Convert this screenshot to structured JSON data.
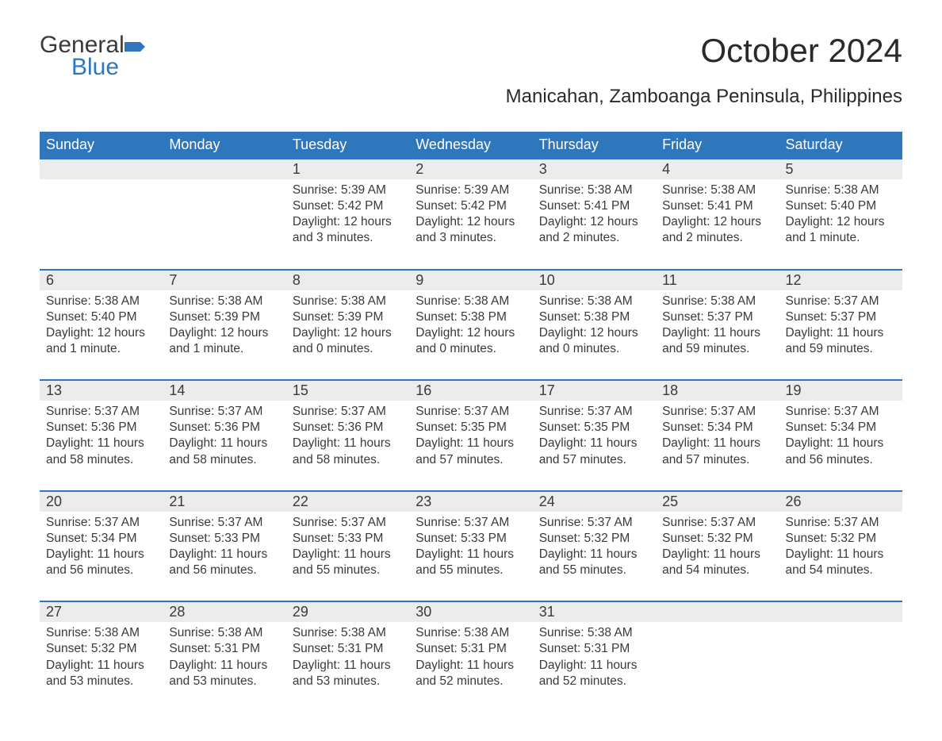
{
  "logo": {
    "general": "General",
    "blue": "Blue",
    "flag_color": "#2f77bc"
  },
  "title": "October 2024",
  "location": "Manicahan, Zamboanga Peninsula, Philippines",
  "colors": {
    "header_bg": "#2f77bc",
    "header_text": "#ffffff",
    "daynum_bg": "#ececec",
    "daynum_border": "#2f77bc",
    "body_text": "#3a3a3a",
    "page_bg": "#ffffff"
  },
  "typography": {
    "title_fontsize": 42,
    "location_fontsize": 24,
    "dayheader_fontsize": 18,
    "daynum_fontsize": 18,
    "detail_fontsize": 15.5,
    "font_family": "Arial"
  },
  "day_headers": [
    "Sunday",
    "Monday",
    "Tuesday",
    "Wednesday",
    "Thursday",
    "Friday",
    "Saturday"
  ],
  "weeks": [
    {
      "nums": [
        "",
        "",
        "1",
        "2",
        "3",
        "4",
        "5"
      ],
      "details": [
        "",
        "",
        "Sunrise: 5:39 AM\nSunset: 5:42 PM\nDaylight: 12 hours and 3 minutes.",
        "Sunrise: 5:39 AM\nSunset: 5:42 PM\nDaylight: 12 hours and 3 minutes.",
        "Sunrise: 5:38 AM\nSunset: 5:41 PM\nDaylight: 12 hours and 2 minutes.",
        "Sunrise: 5:38 AM\nSunset: 5:41 PM\nDaylight: 12 hours and 2 minutes.",
        "Sunrise: 5:38 AM\nSunset: 5:40 PM\nDaylight: 12 hours and 1 minute."
      ]
    },
    {
      "nums": [
        "6",
        "7",
        "8",
        "9",
        "10",
        "11",
        "12"
      ],
      "details": [
        "Sunrise: 5:38 AM\nSunset: 5:40 PM\nDaylight: 12 hours and 1 minute.",
        "Sunrise: 5:38 AM\nSunset: 5:39 PM\nDaylight: 12 hours and 1 minute.",
        "Sunrise: 5:38 AM\nSunset: 5:39 PM\nDaylight: 12 hours and 0 minutes.",
        "Sunrise: 5:38 AM\nSunset: 5:38 PM\nDaylight: 12 hours and 0 minutes.",
        "Sunrise: 5:38 AM\nSunset: 5:38 PM\nDaylight: 12 hours and 0 minutes.",
        "Sunrise: 5:38 AM\nSunset: 5:37 PM\nDaylight: 11 hours and 59 minutes.",
        "Sunrise: 5:37 AM\nSunset: 5:37 PM\nDaylight: 11 hours and 59 minutes."
      ]
    },
    {
      "nums": [
        "13",
        "14",
        "15",
        "16",
        "17",
        "18",
        "19"
      ],
      "details": [
        "Sunrise: 5:37 AM\nSunset: 5:36 PM\nDaylight: 11 hours and 58 minutes.",
        "Sunrise: 5:37 AM\nSunset: 5:36 PM\nDaylight: 11 hours and 58 minutes.",
        "Sunrise: 5:37 AM\nSunset: 5:36 PM\nDaylight: 11 hours and 58 minutes.",
        "Sunrise: 5:37 AM\nSunset: 5:35 PM\nDaylight: 11 hours and 57 minutes.",
        "Sunrise: 5:37 AM\nSunset: 5:35 PM\nDaylight: 11 hours and 57 minutes.",
        "Sunrise: 5:37 AM\nSunset: 5:34 PM\nDaylight: 11 hours and 57 minutes.",
        "Sunrise: 5:37 AM\nSunset: 5:34 PM\nDaylight: 11 hours and 56 minutes."
      ]
    },
    {
      "nums": [
        "20",
        "21",
        "22",
        "23",
        "24",
        "25",
        "26"
      ],
      "details": [
        "Sunrise: 5:37 AM\nSunset: 5:34 PM\nDaylight: 11 hours and 56 minutes.",
        "Sunrise: 5:37 AM\nSunset: 5:33 PM\nDaylight: 11 hours and 56 minutes.",
        "Sunrise: 5:37 AM\nSunset: 5:33 PM\nDaylight: 11 hours and 55 minutes.",
        "Sunrise: 5:37 AM\nSunset: 5:33 PM\nDaylight: 11 hours and 55 minutes.",
        "Sunrise: 5:37 AM\nSunset: 5:32 PM\nDaylight: 11 hours and 55 minutes.",
        "Sunrise: 5:37 AM\nSunset: 5:32 PM\nDaylight: 11 hours and 54 minutes.",
        "Sunrise: 5:37 AM\nSunset: 5:32 PM\nDaylight: 11 hours and 54 minutes."
      ]
    },
    {
      "nums": [
        "27",
        "28",
        "29",
        "30",
        "31",
        "",
        ""
      ],
      "details": [
        "Sunrise: 5:38 AM\nSunset: 5:32 PM\nDaylight: 11 hours and 53 minutes.",
        "Sunrise: 5:38 AM\nSunset: 5:31 PM\nDaylight: 11 hours and 53 minutes.",
        "Sunrise: 5:38 AM\nSunset: 5:31 PM\nDaylight: 11 hours and 53 minutes.",
        "Sunrise: 5:38 AM\nSunset: 5:31 PM\nDaylight: 11 hours and 52 minutes.",
        "Sunrise: 5:38 AM\nSunset: 5:31 PM\nDaylight: 11 hours and 52 minutes.",
        "",
        ""
      ]
    }
  ]
}
